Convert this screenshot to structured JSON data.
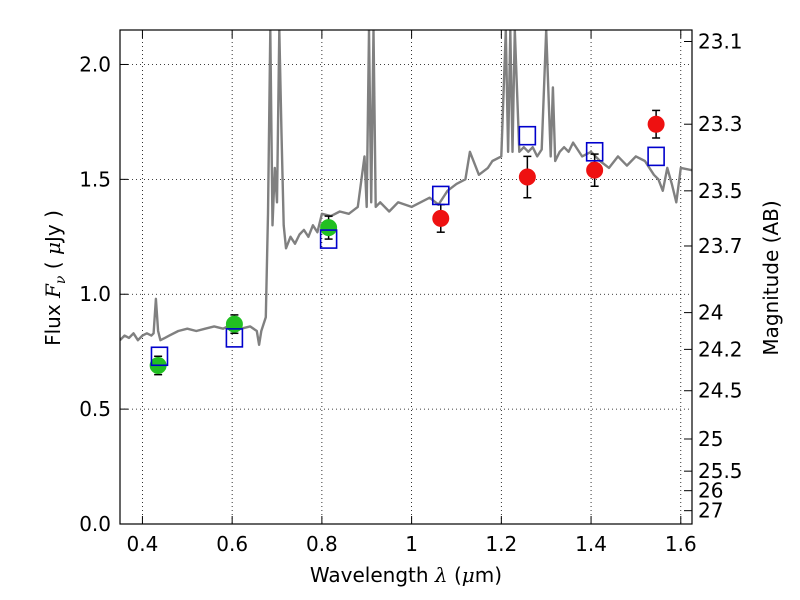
{
  "chart_data": {
    "type": "scatter",
    "xlabel_text": "Wavelength",
    "xlabel_symbol": "λ",
    "xlabel_unit_open": " (",
    "xlabel_unit_mu": "μ",
    "xlabel_unit_rest": "m)",
    "ylabel_text": "Flux",
    "ylabel_symbol": "F",
    "ylabel_sub": "ν",
    "ylabel_unit_open": "( ",
    "ylabel_unit_mu": "μ",
    "ylabel_unit_rest": "Jy )",
    "y2label": "Magnitude (AB)",
    "xlim": [
      0.35,
      1.625
    ],
    "ylim": [
      0.0,
      2.15
    ],
    "grid": true,
    "x_ticks": [
      0.4,
      0.6,
      0.8,
      1.0,
      1.2,
      1.4,
      1.6
    ],
    "x_tick_labels": [
      "0.4",
      "0.6",
      "0.8",
      "1",
      "1.2",
      "1.4",
      "1.6"
    ],
    "y_ticks": [
      0.0,
      0.5,
      1.0,
      1.5,
      2.0
    ],
    "y_tick_labels": [
      "0.0",
      "0.5",
      "1.0",
      "1.5",
      "2.0"
    ],
    "y2_ticks": [
      {
        "label": "23.1",
        "flux": 2.1
      },
      {
        "label": "23.3",
        "flux": 1.74
      },
      {
        "label": "23.5",
        "flux": 1.45
      },
      {
        "label": "23.7",
        "flux": 1.21
      },
      {
        "label": "24",
        "flux": 0.92
      },
      {
        "label": "24.2",
        "flux": 0.76
      },
      {
        "label": "24.5",
        "flux": 0.58
      },
      {
        "label": "25",
        "flux": 0.37
      },
      {
        "label": "25.5",
        "flux": 0.23
      },
      {
        "label": "26",
        "flux": 0.145
      },
      {
        "label": "27",
        "flux": 0.058
      }
    ],
    "series": [
      {
        "kind": "spectrum",
        "color": "#808080",
        "x": [
          0.35,
          0.36,
          0.37,
          0.38,
          0.39,
          0.4,
          0.41,
          0.42,
          0.425,
          0.43,
          0.435,
          0.44,
          0.45,
          0.46,
          0.48,
          0.5,
          0.52,
          0.54,
          0.56,
          0.58,
          0.6,
          0.62,
          0.64,
          0.655,
          0.66,
          0.665,
          0.675,
          0.68,
          0.685,
          0.69,
          0.695,
          0.7,
          0.705,
          0.71,
          0.715,
          0.72,
          0.73,
          0.74,
          0.75,
          0.76,
          0.77,
          0.78,
          0.79,
          0.8,
          0.82,
          0.84,
          0.86,
          0.88,
          0.895,
          0.9,
          0.905,
          0.91,
          0.915,
          0.92,
          0.93,
          0.95,
          0.97,
          1.0,
          1.02,
          1.04,
          1.06,
          1.08,
          1.1,
          1.12,
          1.13,
          1.15,
          1.17,
          1.18,
          1.2,
          1.21,
          1.215,
          1.22,
          1.225,
          1.23,
          1.24,
          1.25,
          1.26,
          1.27,
          1.28,
          1.29,
          1.3,
          1.31,
          1.315,
          1.32,
          1.33,
          1.34,
          1.35,
          1.36,
          1.38,
          1.4,
          1.42,
          1.44,
          1.46,
          1.48,
          1.5,
          1.52,
          1.54,
          1.55,
          1.56,
          1.57,
          1.58,
          1.59,
          1.6,
          1.625
        ],
        "y": [
          0.8,
          0.82,
          0.81,
          0.83,
          0.8,
          0.82,
          0.83,
          0.82,
          0.83,
          0.98,
          0.84,
          0.8,
          0.81,
          0.82,
          0.84,
          0.85,
          0.84,
          0.85,
          0.86,
          0.85,
          0.87,
          0.85,
          0.86,
          0.84,
          0.78,
          0.84,
          0.9,
          1.35,
          2.15,
          1.3,
          1.55,
          1.4,
          2.15,
          1.7,
          1.3,
          1.2,
          1.25,
          1.22,
          1.26,
          1.28,
          1.25,
          1.3,
          1.27,
          1.35,
          1.34,
          1.36,
          1.35,
          1.38,
          1.6,
          1.38,
          2.15,
          1.4,
          2.15,
          1.38,
          1.4,
          1.36,
          1.4,
          1.38,
          1.4,
          1.42,
          1.39,
          1.45,
          1.48,
          1.5,
          1.62,
          1.52,
          1.55,
          1.58,
          1.6,
          2.15,
          1.62,
          2.15,
          1.62,
          2.15,
          1.62,
          1.64,
          1.62,
          1.64,
          1.6,
          1.63,
          2.15,
          1.6,
          1.9,
          1.58,
          1.62,
          1.64,
          1.62,
          1.66,
          1.6,
          1.62,
          1.58,
          1.55,
          1.6,
          1.56,
          1.6,
          1.58,
          1.52,
          1.5,
          1.45,
          1.55,
          1.48,
          1.4,
          1.55,
          1.54
        ]
      },
      {
        "kind": "photometry",
        "name": "",
        "color": "#22c022",
        "x": [
          0.435,
          0.605,
          0.815
        ],
        "y": [
          0.69,
          0.87,
          1.29
        ],
        "yerr": [
          0.04,
          0.04,
          0.05
        ]
      },
      {
        "kind": "photometry",
        "name": "",
        "color": "#ee1111",
        "x": [
          1.065,
          1.258,
          1.408,
          1.545
        ],
        "y": [
          1.33,
          1.51,
          1.54,
          1.74
        ],
        "yerr": [
          0.06,
          0.09,
          0.07,
          0.06
        ]
      },
      {
        "kind": "model",
        "name": "",
        "color": "#0000cc",
        "x": [
          0.438,
          0.605,
          0.815,
          1.065,
          1.258,
          1.408,
          1.545
        ],
        "y": [
          0.73,
          0.81,
          1.24,
          1.43,
          1.69,
          1.62,
          1.6
        ]
      }
    ]
  }
}
